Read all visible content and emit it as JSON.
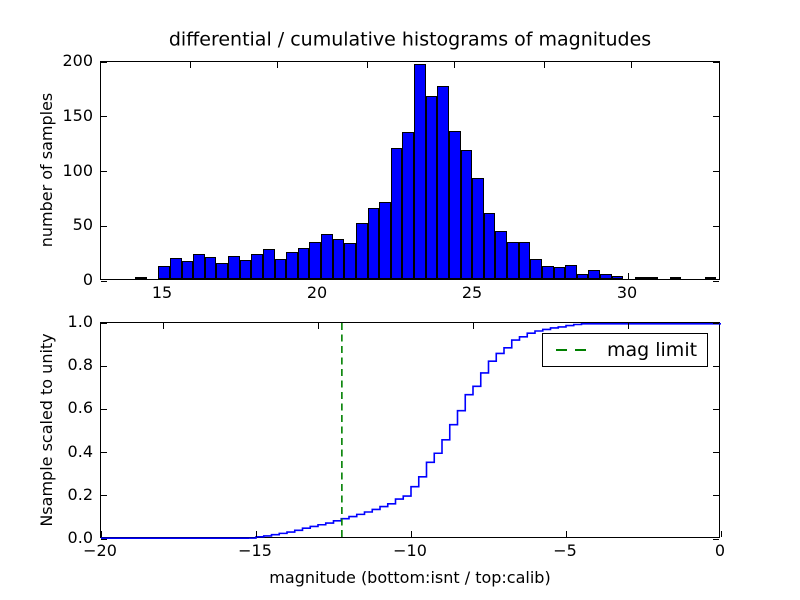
{
  "colors": {
    "background": "#ffffff",
    "bar_fill": "#0000ff",
    "bar_edge": "#000000",
    "curve": "#0000ff",
    "mag_limit": "#008000",
    "axis": "#000000",
    "text": "#000000"
  },
  "chart_data": [
    {
      "id": "differential-histogram",
      "type": "bar",
      "position": "top",
      "title": "differential / cumulative histograms of magnitudes",
      "ylabel": "number of samples",
      "xlim": [
        13,
        33
      ],
      "ylim": [
        0,
        200
      ],
      "xtick_values": [
        15,
        20,
        25,
        30
      ],
      "xtick_labels": [
        "15",
        "20",
        "25",
        "30"
      ],
      "ytick_values": [
        0,
        50,
        100,
        150,
        200
      ],
      "ytick_labels": [
        "0",
        "50",
        "100",
        "150",
        "200"
      ],
      "upper_spine_tick_values": [
        15.9,
        18.7,
        21.6,
        24.4,
        27.3,
        30.1
      ],
      "bins": {
        "start": 14.1,
        "width": 0.375
      },
      "values": [
        2,
        0,
        12,
        19,
        16,
        23,
        20,
        15,
        21,
        17,
        23,
        27,
        18,
        25,
        28,
        34,
        41,
        37,
        33,
        51,
        65,
        70,
        120,
        134,
        196,
        167,
        176,
        135,
        118,
        92,
        60,
        44,
        34,
        34,
        18,
        12,
        11,
        13,
        5,
        8,
        5,
        3,
        0,
        2,
        2,
        0,
        2,
        0,
        0,
        2
      ],
      "grid": false
    },
    {
      "id": "cumulative-histogram",
      "type": "line",
      "position": "bottom",
      "xlabel": "magnitude (bottom:isnt / top:calib)",
      "ylabel": "Nsample scaled to unity",
      "xlim": [
        -20,
        0
      ],
      "ylim": [
        0.0,
        1.0
      ],
      "xtick_values": [
        -20,
        -15,
        -10,
        -5,
        0
      ],
      "xtick_labels": [
        "−20",
        "−15",
        "−10",
        "−5",
        "0"
      ],
      "ytick_values": [
        0.0,
        0.2,
        0.4,
        0.6,
        0.8,
        1.0
      ],
      "ytick_labels": [
        "0.0",
        "0.2",
        "0.4",
        "0.6",
        "0.8",
        "1.0"
      ],
      "upper_spine_tick_values": [
        -18,
        -13,
        -8,
        -3
      ],
      "step": {
        "start": -15.5,
        "width": 0.25
      },
      "cumulative_values": [
        0.0,
        0.004,
        0.01,
        0.014,
        0.02,
        0.026,
        0.032,
        0.04,
        0.05,
        0.058,
        0.066,
        0.074,
        0.084,
        0.094,
        0.104,
        0.114,
        0.125,
        0.137,
        0.15,
        0.163,
        0.185,
        0.199,
        0.242,
        0.288,
        0.355,
        0.397,
        0.459,
        0.529,
        0.594,
        0.668,
        0.707,
        0.769,
        0.823,
        0.859,
        0.885,
        0.921,
        0.936,
        0.953,
        0.963,
        0.97,
        0.977,
        0.982,
        0.988,
        0.993,
        1.0
      ],
      "mag_limit_line": {
        "x": -12.23,
        "style": "dashed",
        "color": "#008000"
      },
      "legend": {
        "label": "mag limit",
        "location": "upper right"
      },
      "grid": false
    }
  ]
}
